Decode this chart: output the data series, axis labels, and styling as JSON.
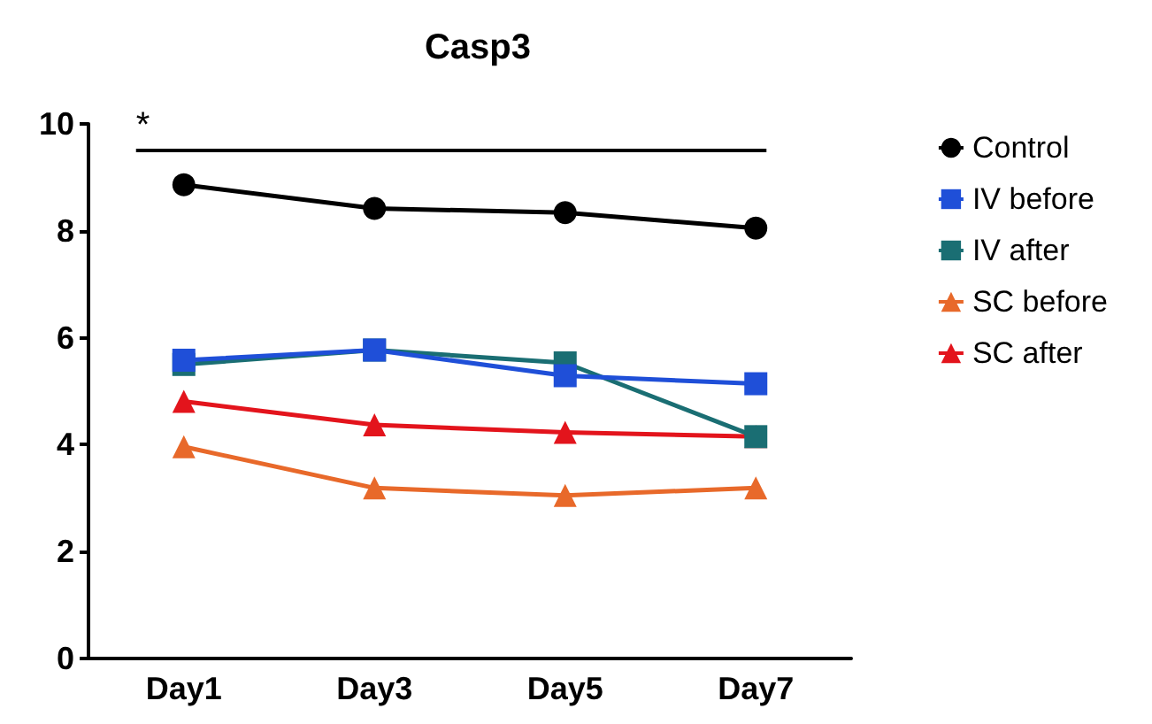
{
  "chart_data": {
    "type": "line",
    "title": "Casp3",
    "categories": [
      "Day1",
      "Day3",
      "Day5",
      "Day7"
    ],
    "series": [
      {
        "name": "Control",
        "color": "#000000",
        "marker": "circle",
        "values": [
          8.86,
          8.42,
          8.34,
          8.05
        ]
      },
      {
        "name": "IV before",
        "color": "#1f4fd8",
        "marker": "square",
        "values": [
          5.58,
          5.77,
          5.29,
          5.14
        ]
      },
      {
        "name": "IV after",
        "color": "#1a6e73",
        "marker": "square",
        "values": [
          5.5,
          5.77,
          5.53,
          4.15
        ]
      },
      {
        "name": "SC before",
        "color": "#e8692a",
        "marker": "triangle",
        "values": [
          3.96,
          3.19,
          3.05,
          3.19
        ]
      },
      {
        "name": "SC after",
        "color": "#e3141c",
        "marker": "triangle",
        "values": [
          4.81,
          4.37,
          4.23,
          4.15
        ]
      }
    ],
    "ylim": [
      0,
      10
    ],
    "yticks": [
      0,
      2,
      4,
      6,
      8,
      10
    ],
    "grid": false,
    "legend": "right",
    "line_style": "solid",
    "ref_lines": [
      {
        "axis": "y",
        "value": 9.5,
        "label": "*",
        "color": "#000000"
      }
    ]
  }
}
